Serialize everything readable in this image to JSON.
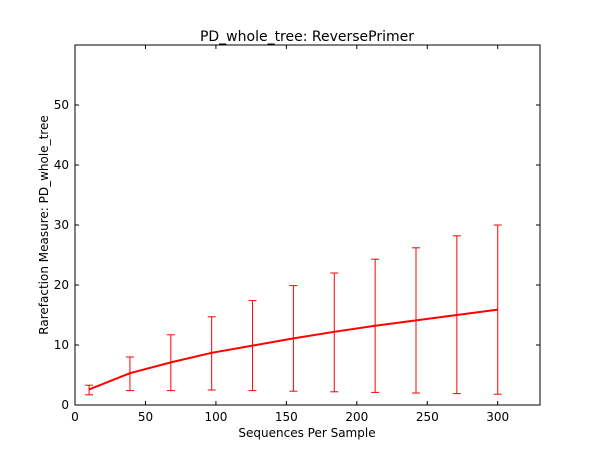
{
  "chart_data": {
    "type": "line",
    "title": "PD_whole_tree: ReversePrimer",
    "xlabel": "Sequences Per Sample",
    "ylabel": "Rarefaction Measure: PD_whole_tree",
    "xlim": [
      0,
      330
    ],
    "ylim": [
      0,
      60
    ],
    "xticks": [
      0,
      50,
      100,
      150,
      200,
      250,
      300
    ],
    "yticks": [
      0,
      10,
      20,
      30,
      40,
      50
    ],
    "grid": false,
    "legend": "none",
    "color": "#ff0000",
    "series": [
      {
        "x": [
          10,
          39,
          68,
          97,
          126,
          155,
          184,
          213,
          242,
          271,
          300
        ],
        "y": [
          2.6,
          5.3,
          7.1,
          8.7,
          9.9,
          11.1,
          12.2,
          13.2,
          14.1,
          15.0,
          15.9
        ],
        "err_low": [
          1.7,
          2.4,
          2.4,
          2.5,
          2.4,
          2.3,
          2.2,
          2.1,
          2.0,
          1.9,
          1.8
        ],
        "err_high": [
          3.3,
          8.0,
          11.7,
          14.7,
          17.4,
          19.9,
          22.0,
          24.3,
          26.2,
          28.2,
          30.0
        ]
      }
    ]
  }
}
